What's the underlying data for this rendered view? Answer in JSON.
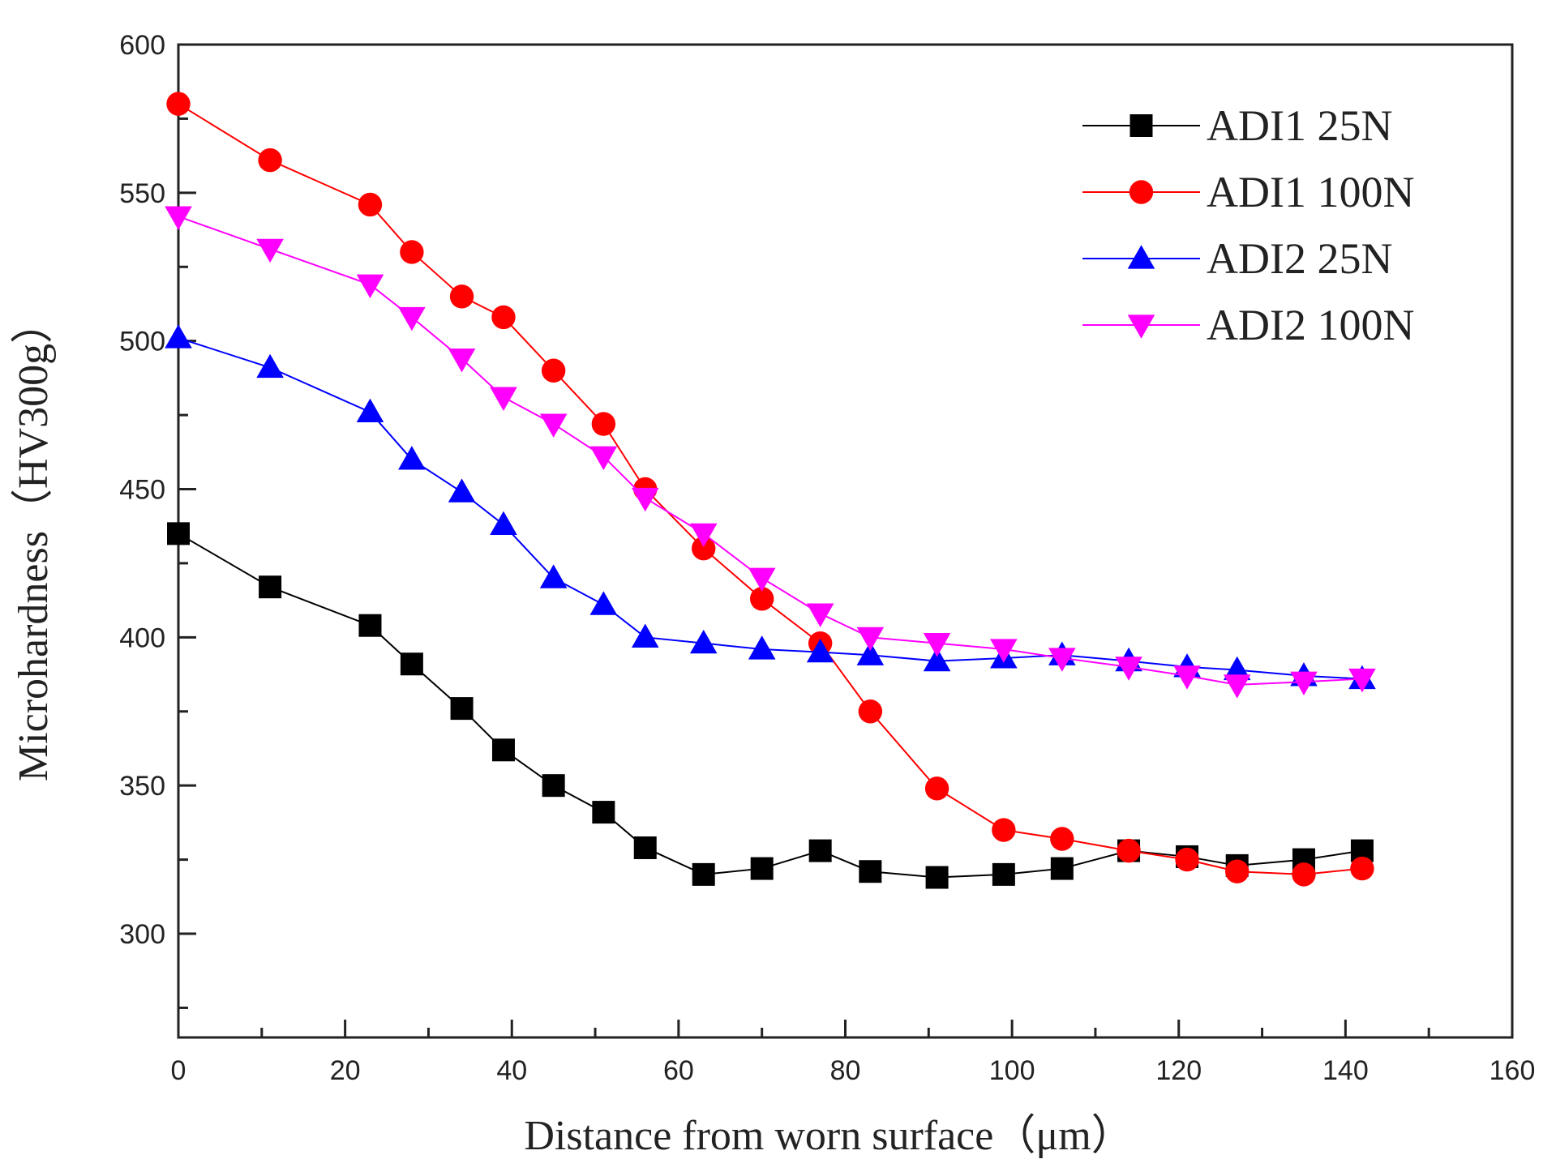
{
  "chart_data": {
    "type": "line",
    "title": "",
    "xlabel": "Distance from worn surface（μm）",
    "ylabel": "Microhardness（HV300g）",
    "xlim": [
      0,
      160
    ],
    "ylim": [
      265,
      600
    ],
    "x_ticks": [
      "0",
      "20",
      "40",
      "60",
      "80",
      "100",
      "120",
      "140",
      "160"
    ],
    "y_ticks": [
      "300",
      "350",
      "400",
      "450",
      "500",
      "550",
      "600"
    ],
    "grid": false,
    "legend_position": "top-right",
    "x": [
      0,
      11,
      23,
      28,
      34,
      39,
      45,
      51,
      56,
      63,
      70,
      77,
      83,
      91,
      99,
      106,
      114,
      121,
      127,
      135,
      142
    ],
    "series": [
      {
        "name": "ADI1 25N",
        "color": "#000000",
        "marker": "square",
        "values": [
          435,
          417,
          404,
          391,
          376,
          362,
          350,
          341,
          329,
          320,
          322,
          328,
          321,
          319,
          320,
          322,
          328,
          326,
          323,
          325,
          328
        ]
      },
      {
        "name": "ADI1 100N",
        "color": "#ff0000",
        "marker": "circle",
        "values": [
          580,
          561,
          546,
          530,
          515,
          508,
          490,
          472,
          450,
          430,
          413,
          398,
          375,
          349,
          335,
          332,
          328,
          325,
          321,
          320,
          322
        ]
      },
      {
        "name": "ADI2 25N",
        "color": "#0000ff",
        "marker": "triangle-up",
        "values": [
          501,
          491,
          476,
          460,
          449,
          438,
          420,
          411,
          400,
          398,
          396,
          395,
          394,
          392,
          393,
          394,
          392,
          390,
          389,
          387,
          386
        ]
      },
      {
        "name": "ADI2 100N",
        "color": "#ff00ff",
        "marker": "triangle-down",
        "values": [
          542,
          531,
          519,
          508,
          494,
          481,
          472,
          461,
          447,
          435,
          420,
          408,
          400,
          398,
          396,
          393,
          390,
          387,
          384,
          385,
          386
        ]
      }
    ]
  }
}
